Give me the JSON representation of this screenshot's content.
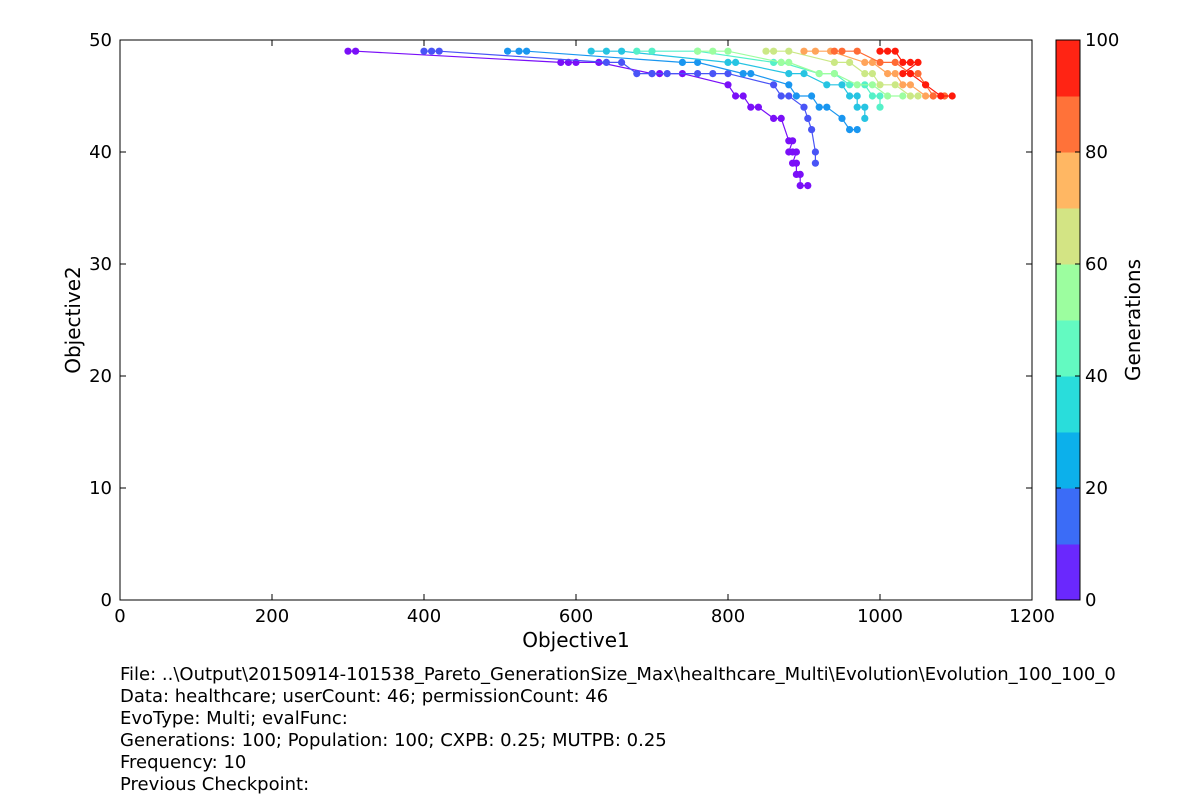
{
  "chart_data": {
    "type": "line",
    "xlabel": "Objective1",
    "ylabel": "Objective2",
    "xlim": [
      0,
      1200
    ],
    "ylim": [
      0,
      50
    ],
    "xticks": [
      "0",
      "200",
      "400",
      "600",
      "800",
      "1000",
      "1200"
    ],
    "yticks": [
      "0",
      "10",
      "20",
      "30",
      "40",
      "50"
    ],
    "grid": false,
    "colorbar": {
      "label": "Generations",
      "range": [
        0,
        100
      ],
      "ticks": [
        "0",
        "20",
        "40",
        "60",
        "80",
        "100"
      ],
      "colors": [
        "#6a28fd",
        "#3b6cf7",
        "#0cb0eb",
        "#29dddb",
        "#63fac1",
        "#9cfe9f",
        "#d3e484",
        "#ffb763",
        "#ff7239",
        "#ff2414"
      ]
    },
    "series": [
      {
        "generation": 1,
        "color": "#7a0ff8",
        "points": [
          [
            300,
            49
          ],
          [
            310,
            49
          ],
          [
            580,
            48
          ],
          [
            590,
            48
          ],
          [
            600,
            48
          ],
          [
            630,
            48
          ],
          [
            700,
            47
          ],
          [
            710,
            47
          ],
          [
            740,
            47
          ],
          [
            800,
            46
          ],
          [
            810,
            45
          ],
          [
            820,
            45
          ],
          [
            830,
            44
          ],
          [
            840,
            44
          ],
          [
            860,
            43
          ],
          [
            870,
            43
          ],
          [
            880,
            41
          ],
          [
            885,
            41
          ],
          [
            880,
            40
          ],
          [
            885,
            40
          ],
          [
            890,
            40
          ],
          [
            885,
            39
          ],
          [
            890,
            39
          ],
          [
            890,
            38
          ],
          [
            895,
            38
          ],
          [
            895,
            37
          ],
          [
            905,
            37
          ]
        ]
      },
      {
        "generation": 10,
        "color": "#4954f6",
        "points": [
          [
            400,
            49
          ],
          [
            410,
            49
          ],
          [
            420,
            49
          ],
          [
            640,
            48
          ],
          [
            660,
            48
          ],
          [
            680,
            47
          ],
          [
            700,
            47
          ],
          [
            720,
            47
          ],
          [
            760,
            47
          ],
          [
            780,
            47
          ],
          [
            800,
            47
          ],
          [
            860,
            46
          ],
          [
            870,
            45
          ],
          [
            880,
            45
          ],
          [
            900,
            44
          ],
          [
            905,
            43
          ],
          [
            910,
            42
          ],
          [
            915,
            40
          ],
          [
            915,
            39
          ]
        ]
      },
      {
        "generation": 20,
        "color": "#1996f0",
        "points": [
          [
            510,
            49
          ],
          [
            525,
            49
          ],
          [
            535,
            49
          ],
          [
            740,
            48
          ],
          [
            760,
            48
          ],
          [
            820,
            47
          ],
          [
            830,
            47
          ],
          [
            880,
            46
          ],
          [
            890,
            45
          ],
          [
            910,
            45
          ],
          [
            920,
            44
          ],
          [
            930,
            44
          ],
          [
            950,
            43
          ],
          [
            960,
            42
          ],
          [
            970,
            42
          ]
        ]
      },
      {
        "generation": 30,
        "color": "#26c4e2",
        "points": [
          [
            620,
            49
          ],
          [
            640,
            49
          ],
          [
            660,
            49
          ],
          [
            800,
            48
          ],
          [
            810,
            48
          ],
          [
            880,
            47
          ],
          [
            900,
            47
          ],
          [
            930,
            46
          ],
          [
            950,
            46
          ],
          [
            960,
            45
          ],
          [
            970,
            45
          ],
          [
            970,
            44
          ],
          [
            980,
            44
          ],
          [
            980,
            43
          ]
        ]
      },
      {
        "generation": 40,
        "color": "#55f1c8",
        "points": [
          [
            680,
            49
          ],
          [
            700,
            49
          ],
          [
            760,
            49
          ],
          [
            860,
            48
          ],
          [
            870,
            48
          ],
          [
            920,
            47
          ],
          [
            940,
            47
          ],
          [
            960,
            46
          ],
          [
            980,
            46
          ],
          [
            990,
            45
          ],
          [
            1000,
            45
          ],
          [
            1000,
            44
          ]
        ]
      },
      {
        "generation": 55,
        "color": "#9cfe9f",
        "points": [
          [
            760,
            49
          ],
          [
            780,
            49
          ],
          [
            800,
            49
          ],
          [
            870,
            48
          ],
          [
            880,
            48
          ],
          [
            920,
            47
          ],
          [
            940,
            47
          ],
          [
            970,
            46
          ],
          [
            990,
            46
          ],
          [
            1010,
            45
          ],
          [
            1030,
            45
          ]
        ]
      },
      {
        "generation": 65,
        "color": "#cbe885",
        "points": [
          [
            850,
            49
          ],
          [
            860,
            49
          ],
          [
            880,
            49
          ],
          [
            940,
            48
          ],
          [
            960,
            48
          ],
          [
            980,
            47
          ],
          [
            990,
            47
          ],
          [
            1000,
            46
          ],
          [
            1020,
            46
          ],
          [
            1040,
            45
          ],
          [
            1050,
            45
          ]
        ]
      },
      {
        "generation": 75,
        "color": "#ffa45a",
        "points": [
          [
            900,
            49
          ],
          [
            915,
            49
          ],
          [
            935,
            49
          ],
          [
            980,
            48
          ],
          [
            990,
            48
          ],
          [
            1010,
            47
          ],
          [
            1020,
            47
          ],
          [
            1030,
            46
          ],
          [
            1040,
            46
          ],
          [
            1060,
            45
          ],
          [
            1070,
            45
          ]
        ]
      },
      {
        "generation": 85,
        "color": "#ff6a34",
        "points": [
          [
            940,
            49
          ],
          [
            950,
            49
          ],
          [
            970,
            49
          ],
          [
            1000,
            48
          ],
          [
            1020,
            48
          ],
          [
            1040,
            47
          ],
          [
            1050,
            47
          ],
          [
            1060,
            46
          ],
          [
            1070,
            45
          ],
          [
            1085,
            45
          ]
        ]
      },
      {
        "generation": 100,
        "color": "#ff1a0a",
        "points": [
          [
            1000,
            49
          ],
          [
            1010,
            49
          ],
          [
            1020,
            49
          ],
          [
            1030,
            48
          ],
          [
            1040,
            48
          ],
          [
            1050,
            48
          ],
          [
            1030,
            47
          ],
          [
            1040,
            47
          ],
          [
            1060,
            46
          ],
          [
            1080,
            45
          ],
          [
            1095,
            45
          ]
        ]
      }
    ]
  },
  "info": {
    "file": "File: ..\\Output\\20150914-101538_Pareto_GenerationSize_Max\\healthcare_Multi\\Evolution\\Evolution_100_100_0",
    "data": "Data: healthcare; userCount: 46; permissionCount: 46",
    "evo": "EvoType: Multi; evalFunc:",
    "gens": "Generations: 100; Population: 100; CXPB: 0.25; MUTPB: 0.25",
    "freq": "Frequency: 10",
    "prev": "Previous Checkpoint:"
  }
}
